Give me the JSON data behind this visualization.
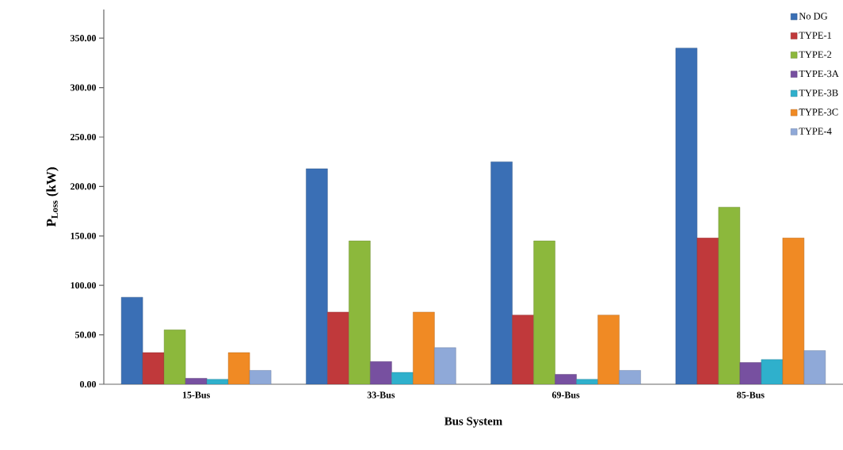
{
  "chart_data": {
    "type": "bar",
    "xlabel": "Bus System",
    "ylabel": "P$_{Loss}$  (kW)",
    "categories": [
      "15-Bus",
      "33-Bus",
      "69-Bus",
      "85-Bus"
    ],
    "series": [
      {
        "name": "No DG",
        "color": "#3a6fb5",
        "values": [
          88,
          218,
          225,
          340
        ]
      },
      {
        "name": "TYPE-1",
        "color": "#c0393b",
        "values": [
          32,
          73,
          70,
          148
        ]
      },
      {
        "name": "TYPE-2",
        "color": "#8cb83c",
        "values": [
          55,
          145,
          145,
          179
        ]
      },
      {
        "name": "TYPE-3A",
        "color": "#7750a0",
        "values": [
          6,
          23,
          10,
          22
        ]
      },
      {
        "name": "TYPE-3B",
        "color": "#2fb0cc",
        "values": [
          5,
          12,
          5,
          25
        ]
      },
      {
        "name": "TYPE-3C",
        "color": "#f08a24",
        "values": [
          32,
          73,
          70,
          148
        ]
      },
      {
        "name": "TYPE-4",
        "color": "#8fa9d8",
        "values": [
          14,
          37,
          14,
          34
        ]
      }
    ],
    "ylim": [
      0,
      379
    ],
    "yticks": [
      {
        "value": 0,
        "label": "0.00"
      },
      {
        "value": 50,
        "label": "50.00"
      },
      {
        "value": 100,
        "label": "100.00"
      },
      {
        "value": 150,
        "label": "150.00"
      },
      {
        "value": 200,
        "label": "200.00"
      },
      {
        "value": 250,
        "label": "250.00"
      },
      {
        "value": 300,
        "label": "300.00"
      },
      {
        "value": 350,
        "label": "350.00"
      }
    ],
    "legend": "top right",
    "grid": false
  }
}
